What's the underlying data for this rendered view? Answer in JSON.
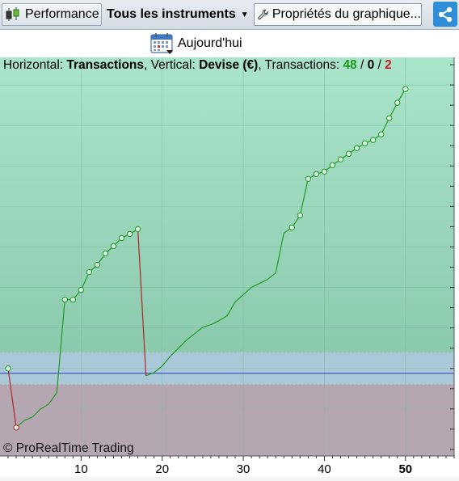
{
  "toolbar": {
    "performance_label": "Performance",
    "instruments_label": "Tous les instruments",
    "chart_properties_label": "Propriétés du graphique..."
  },
  "date_bar": {
    "today_label": "Aujourd'hui"
  },
  "info_line": {
    "horizontal_prefix": "Horizontal: ",
    "horizontal_value": "Transactions",
    "vertical_prefix": ", Vertical: ",
    "vertical_value": "Devise (€)",
    "transactions_prefix": ", Transactions: ",
    "winning": "48",
    "sep1": " / ",
    "neutral": "0",
    "sep2": " / ",
    "losing": "2"
  },
  "copyright": "© ProRealTime Trading",
  "colors": {
    "gain_zone": "#a6dfc6",
    "loss_zone": "#b5a7b1",
    "neutral_band": "#a9c8d8",
    "baseline": "#2b3fc4",
    "equity_up": "#1f9a1f",
    "equity_down": "#b32424",
    "marker": "#1f9a1f",
    "grid": "#7fb3a0"
  },
  "chart_data": {
    "type": "line",
    "x": [
      1,
      2,
      3,
      4,
      5,
      6,
      7,
      8,
      9,
      10,
      11,
      12,
      13,
      14,
      15,
      16,
      17,
      18,
      19,
      20,
      21,
      22,
      23,
      24,
      25,
      26,
      27,
      28,
      29,
      30,
      31,
      32,
      33,
      34,
      35,
      36,
      37,
      38,
      39,
      40,
      41,
      42,
      43,
      44,
      45,
      46,
      47,
      48,
      49,
      50
    ],
    "y": [
      0,
      -7.3,
      -6.4,
      -6.0,
      -5.0,
      -4.4,
      -3.0,
      8.5,
      8.5,
      9.7,
      11.9,
      12.8,
      14.2,
      15.1,
      16.1,
      16.6,
      17.2,
      -0.9,
      -0.5,
      0.3,
      1.5,
      2.5,
      3.5,
      4.3,
      5.1,
      5.4,
      5.9,
      6.5,
      8.2,
      9.1,
      10.0,
      10.5,
      11.0,
      11.8,
      16.7,
      17.4,
      18.9,
      23.4,
      24.0,
      24.3,
      25.1,
      25.8,
      26.5,
      27.2,
      27.8,
      28.2,
      28.9,
      30.9,
      32.8,
      34.5
    ],
    "markers_at": [
      1,
      2,
      8,
      9,
      10,
      11,
      12,
      13,
      14,
      15,
      16,
      17,
      36,
      37,
      38,
      39,
      40,
      41,
      42,
      43,
      44,
      45,
      46,
      47,
      48,
      49,
      50
    ],
    "losing_trades": [
      2,
      18
    ],
    "xlim": [
      0,
      56
    ],
    "ylim": [
      -10.8,
      38.4
    ],
    "x_ticks": [
      "10",
      "20",
      "30",
      "40",
      "50"
    ],
    "x_tick_values": [
      10,
      20,
      30,
      40,
      50
    ],
    "highlighted_tick": "50",
    "band_upper": 2.0,
    "band_lower": -2.0,
    "grid": true
  }
}
